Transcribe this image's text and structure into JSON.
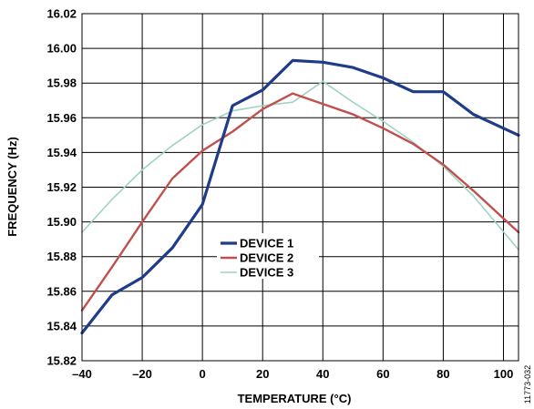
{
  "chart_data": {
    "type": "line",
    "xlabel": "TEMPERATURE (°C)",
    "ylabel": "FREQUENCY (Hz)",
    "xlim": [
      -40,
      105
    ],
    "ylim": [
      15.82,
      16.02
    ],
    "x_ticks": [
      -40,
      -20,
      0,
      20,
      40,
      60,
      80,
      100
    ],
    "y_ticks": [
      15.82,
      15.84,
      15.86,
      15.88,
      15.9,
      15.92,
      15.94,
      15.96,
      15.98,
      16.0,
      16.02
    ],
    "x_tick_labels": [
      "–40",
      "–20",
      "0",
      "20",
      "40",
      "60",
      "80",
      "100"
    ],
    "y_tick_labels": [
      "15.82",
      "15.84",
      "15.86",
      "15.88",
      "15.90",
      "15.92",
      "15.94",
      "15.96",
      "15.98",
      "16.00",
      "16.02"
    ],
    "grid": true,
    "legend_position": "center",
    "figure_id": "11773-032",
    "series": [
      {
        "name": "DEVICE 1",
        "color": "#1f3c88",
        "x": [
          -40,
          -30,
          -20,
          -10,
          0,
          10,
          20,
          30,
          40,
          50,
          60,
          70,
          80,
          90,
          105
        ],
        "values": [
          15.836,
          15.858,
          15.868,
          15.885,
          15.91,
          15.967,
          15.976,
          15.993,
          15.992,
          15.989,
          15.983,
          15.975,
          15.975,
          15.962,
          15.95
        ]
      },
      {
        "name": "DEVICE 2",
        "color": "#c0504d",
        "x": [
          -40,
          -30,
          -20,
          -10,
          0,
          10,
          20,
          30,
          40,
          50,
          60,
          70,
          80,
          90,
          105
        ],
        "values": [
          15.849,
          15.874,
          15.9,
          15.925,
          15.941,
          15.952,
          15.965,
          15.974,
          15.968,
          15.962,
          15.954,
          15.945,
          15.933,
          15.918,
          15.894
        ]
      },
      {
        "name": "DEVICE 3",
        "color": "#9fd3c0",
        "x": [
          -40,
          -30,
          -20,
          -10,
          0,
          10,
          20,
          30,
          40,
          50,
          60,
          70,
          80,
          90,
          105
        ],
        "values": [
          15.894,
          15.913,
          15.93,
          15.944,
          15.956,
          15.964,
          15.967,
          15.969,
          15.981,
          15.969,
          15.958,
          15.946,
          15.932,
          15.915,
          15.884
        ]
      }
    ]
  }
}
